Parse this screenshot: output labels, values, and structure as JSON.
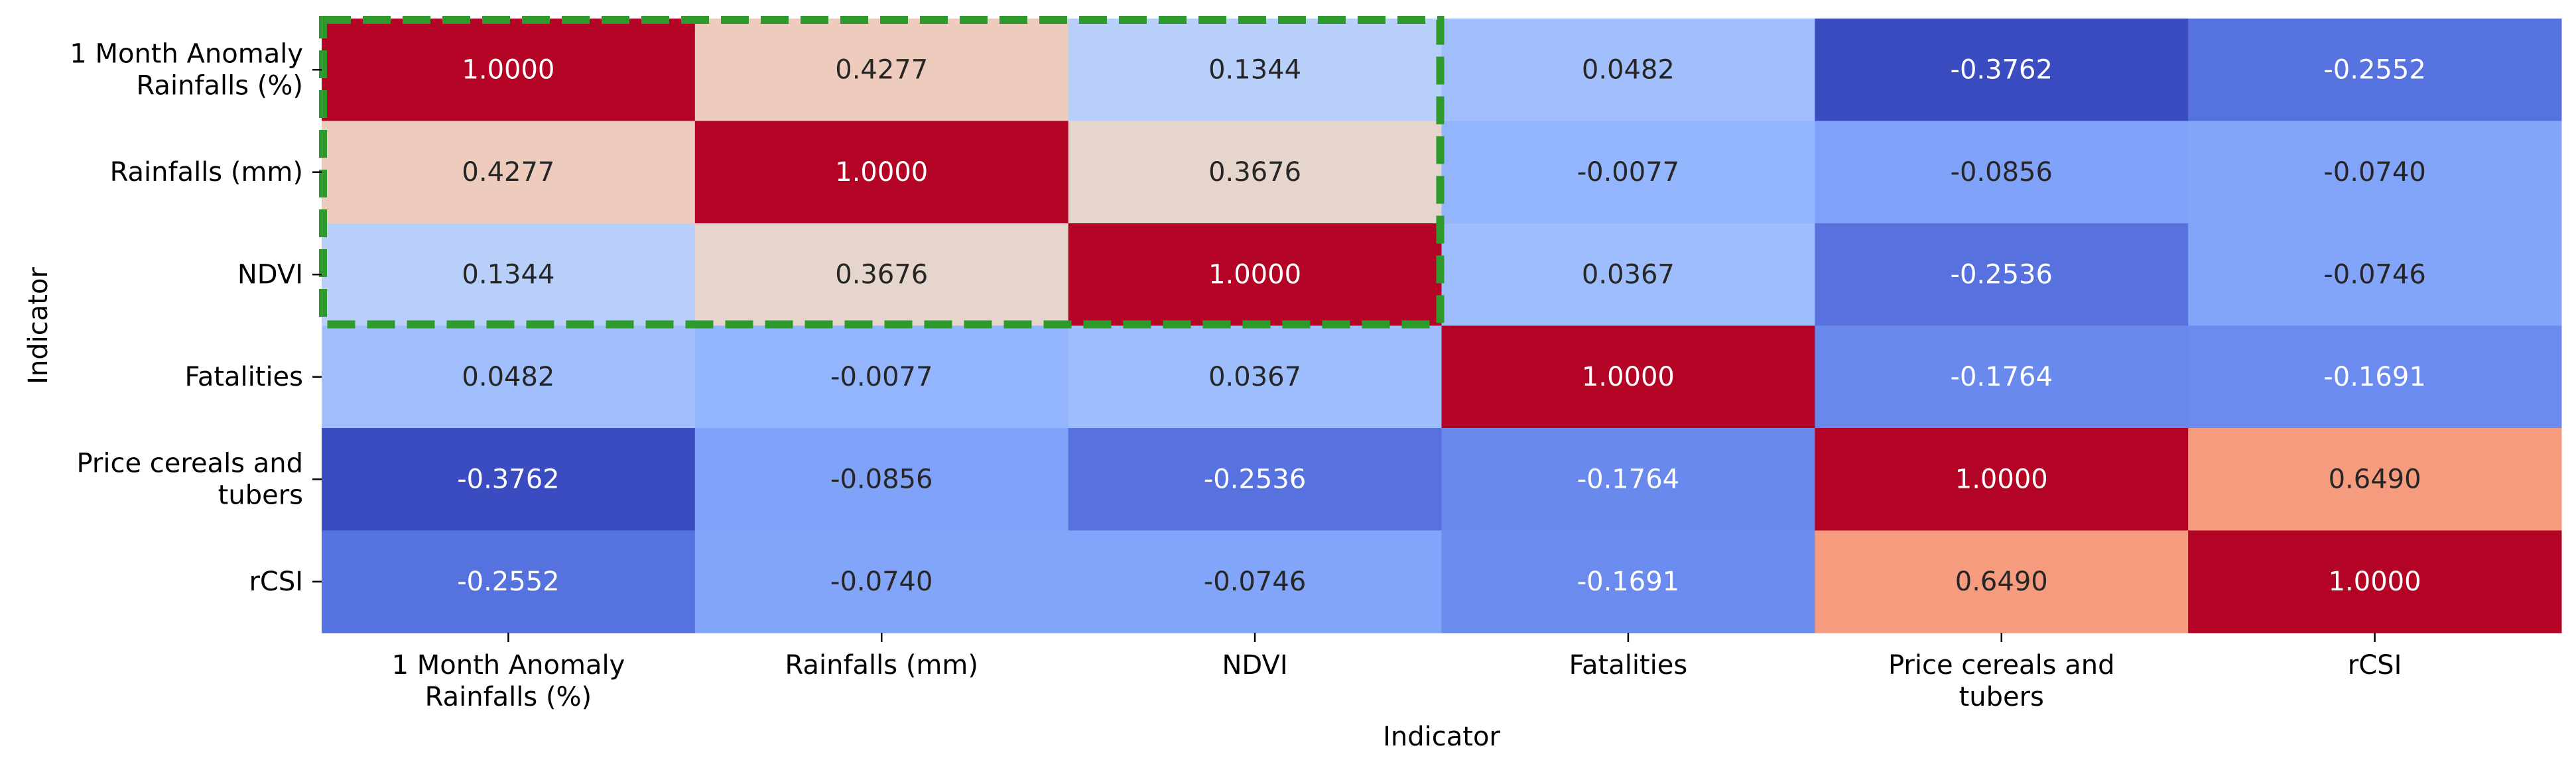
{
  "chart_data": {
    "type": "heatmap",
    "xlabel": "Indicator",
    "ylabel": "Indicator",
    "colormap": "coolwarm",
    "vmin": -0.3762,
    "vmax": 1.0,
    "x_categories": [
      [
        "1 Month Anomaly",
        "Rainfalls (%)"
      ],
      [
        "Rainfalls (mm)"
      ],
      [
        "NDVI"
      ],
      [
        "Fatalities"
      ],
      [
        "Price cereals and",
        "tubers"
      ],
      [
        "rCSI"
      ]
    ],
    "y_categories": [
      [
        "1 Month Anomaly",
        "Rainfalls (%)"
      ],
      [
        "Rainfalls (mm)"
      ],
      [
        "NDVI"
      ],
      [
        "Fatalities"
      ],
      [
        "Price cereals and",
        "tubers"
      ],
      [
        "rCSI"
      ]
    ],
    "values": [
      [
        1.0,
        0.4277,
        0.1344,
        0.0482,
        -0.3762,
        -0.2552
      ],
      [
        0.4277,
        1.0,
        0.3676,
        -0.0077,
        -0.0856,
        -0.074
      ],
      [
        0.1344,
        0.3676,
        1.0,
        0.0367,
        -0.2536,
        -0.0746
      ],
      [
        0.0482,
        -0.0077,
        0.0367,
        1.0,
        -0.1764,
        -0.1691
      ],
      [
        -0.3762,
        -0.0856,
        -0.2536,
        -0.1764,
        1.0,
        0.649
      ],
      [
        -0.2552,
        -0.074,
        -0.0746,
        -0.1691,
        0.649,
        1.0
      ]
    ],
    "value_format": "4 decimals",
    "highlight": {
      "style": "dashed",
      "color": "#2e9a2e",
      "rows": [
        0,
        2
      ],
      "cols": [
        0,
        2
      ]
    },
    "colorbar": false,
    "grid": false
  }
}
